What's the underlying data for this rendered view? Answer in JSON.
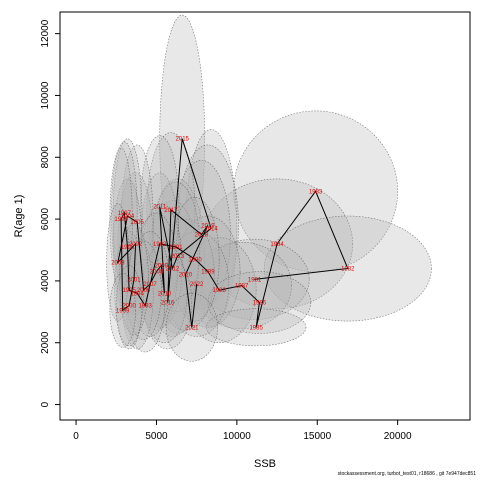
{
  "chart_data": {
    "type": "scatter",
    "title": "",
    "xlabel": "SSB",
    "ylabel": "R(age 1)",
    "xlim": [
      -1000,
      24500
    ],
    "ylim": [
      -500,
      12700
    ],
    "x_ticks": [
      0,
      5000,
      10000,
      15000,
      20000
    ],
    "y_ticks": [
      0,
      2000,
      4000,
      6000,
      8000,
      10000,
      12000
    ],
    "grid": false,
    "legend": "none",
    "colors": {
      "line": "#000000",
      "label": "#e00000",
      "ellipse_fill": "#b4b4b4",
      "ellipse_stroke": "#555555"
    },
    "points": [
      {
        "label": "1981",
        "x": 11100,
        "y": 4050
      },
      {
        "label": "1982",
        "x": 16900,
        "y": 4400
      },
      {
        "label": "1983",
        "x": 14900,
        "y": 6900
      },
      {
        "label": "1984",
        "x": 12500,
        "y": 5200
      },
      {
        "label": "1985",
        "x": 11200,
        "y": 2500
      },
      {
        "label": "1986",
        "x": 11400,
        "y": 3300
      },
      {
        "label": "1987",
        "x": 10300,
        "y": 3850
      },
      {
        "label": "1988",
        "x": 8900,
        "y": 3700
      },
      {
        "label": "1989",
        "x": 8200,
        "y": 4300
      },
      {
        "label": "1990",
        "x": 7400,
        "y": 4700
      },
      {
        "label": "1991",
        "x": 6200,
        "y": 5100
      },
      {
        "label": "1992",
        "x": 5200,
        "y": 5200
      },
      {
        "label": "1993",
        "x": 4300,
        "y": 3200
      },
      {
        "label": "1994",
        "x": 3800,
        "y": 3600
      },
      {
        "label": "1995",
        "x": 3300,
        "y": 3700
      },
      {
        "label": "1996",
        "x": 3200,
        "y": 5100
      },
      {
        "label": "1997",
        "x": 3000,
        "y": 6200
      },
      {
        "label": "1998",
        "x": 2800,
        "y": 6000
      },
      {
        "label": "1999",
        "x": 2900,
        "y": 3050
      },
      {
        "label": "2000",
        "x": 3300,
        "y": 3200
      },
      {
        "label": "2001",
        "x": 3600,
        "y": 4050
      },
      {
        "label": "2002",
        "x": 3700,
        "y": 5200
      },
      {
        "label": "2003",
        "x": 2600,
        "y": 4600
      },
      {
        "label": "2004",
        "x": 3200,
        "y": 6100
      },
      {
        "label": "2005",
        "x": 3800,
        "y": 5900
      },
      {
        "label": "2006",
        "x": 4200,
        "y": 3700
      },
      {
        "label": "2007",
        "x": 4600,
        "y": 3900
      },
      {
        "label": "2008",
        "x": 5000,
        "y": 4300
      },
      {
        "label": "2009",
        "x": 5300,
        "y": 4500
      },
      {
        "label": "2010",
        "x": 5500,
        "y": 3600
      },
      {
        "label": "2011",
        "x": 5200,
        "y": 6400
      },
      {
        "label": "2012",
        "x": 6000,
        "y": 4400
      },
      {
        "label": "2013",
        "x": 6300,
        "y": 4800
      },
      {
        "label": "2014",
        "x": 8400,
        "y": 5700
      },
      {
        "label": "2015",
        "x": 6600,
        "y": 8600
      },
      {
        "label": "2016",
        "x": 5700,
        "y": 3300
      },
      {
        "label": "2017",
        "x": 5900,
        "y": 6300
      },
      {
        "label": "2018",
        "x": 7800,
        "y": 5500
      },
      {
        "label": "2019",
        "x": 8200,
        "y": 5800
      },
      {
        "label": "2020",
        "x": 6800,
        "y": 4200
      },
      {
        "label": "2021",
        "x": 7200,
        "y": 2500
      },
      {
        "label": "2022",
        "x": 7500,
        "y": 3900
      }
    ],
    "ellipses": [
      {
        "label": "1981",
        "x": 11100,
        "y": 4050,
        "rx": 3400,
        "ry": 1300
      },
      {
        "label": "1982",
        "x": 16900,
        "y": 4400,
        "rx": 5200,
        "ry": 1700
      },
      {
        "label": "1983",
        "x": 14900,
        "y": 6900,
        "rx": 5100,
        "ry": 2600
      },
      {
        "label": "1984",
        "x": 12500,
        "y": 5200,
        "rx": 4700,
        "ry": 2100
      },
      {
        "label": "1985",
        "x": 11200,
        "y": 2500,
        "rx": 3100,
        "ry": 600
      },
      {
        "label": "1986",
        "x": 11400,
        "y": 3300,
        "rx": 3200,
        "ry": 1000
      },
      {
        "label": "1987",
        "x": 10300,
        "y": 3850,
        "rx": 3100,
        "ry": 1400
      },
      {
        "label": "1988",
        "x": 8900,
        "y": 3700,
        "rx": 2300,
        "ry": 1700
      },
      {
        "label": "1989",
        "x": 8200,
        "y": 4300,
        "rx": 2000,
        "ry": 1800
      },
      {
        "label": "1990",
        "x": 7400,
        "y": 4700,
        "rx": 1500,
        "ry": 2000
      },
      {
        "label": "1991",
        "x": 6200,
        "y": 5100,
        "rx": 1500,
        "ry": 2100
      },
      {
        "label": "1992",
        "x": 5200,
        "y": 5200,
        "rx": 1200,
        "ry": 2300
      },
      {
        "label": "1993",
        "x": 4300,
        "y": 3200,
        "rx": 1200,
        "ry": 1500
      },
      {
        "label": "1994",
        "x": 3800,
        "y": 3600,
        "rx": 1000,
        "ry": 1800
      },
      {
        "label": "1995",
        "x": 3300,
        "y": 3700,
        "rx": 900,
        "ry": 1900
      },
      {
        "label": "1996",
        "x": 3200,
        "y": 5100,
        "rx": 900,
        "ry": 2200
      },
      {
        "label": "1997",
        "x": 3000,
        "y": 6200,
        "rx": 800,
        "ry": 2300
      },
      {
        "label": "1998",
        "x": 2800,
        "y": 6000,
        "rx": 700,
        "ry": 2300
      },
      {
        "label": "1999",
        "x": 2900,
        "y": 3050,
        "rx": 800,
        "ry": 1200
      },
      {
        "label": "2000",
        "x": 3300,
        "y": 3200,
        "rx": 800,
        "ry": 1300
      },
      {
        "label": "2001",
        "x": 3600,
        "y": 4050,
        "rx": 900,
        "ry": 1800
      },
      {
        "label": "2002",
        "x": 3700,
        "y": 5200,
        "rx": 1100,
        "ry": 2300
      },
      {
        "label": "2003",
        "x": 2600,
        "y": 4600,
        "rx": 700,
        "ry": 1900
      },
      {
        "label": "2004",
        "x": 3200,
        "y": 6100,
        "rx": 900,
        "ry": 2500
      },
      {
        "label": "2005",
        "x": 3800,
        "y": 5900,
        "rx": 1000,
        "ry": 2500
      },
      {
        "label": "2006",
        "x": 4200,
        "y": 3700,
        "rx": 1100,
        "ry": 1600
      },
      {
        "label": "2007",
        "x": 4600,
        "y": 3900,
        "rx": 1200,
        "ry": 1700
      },
      {
        "label": "2008",
        "x": 5000,
        "y": 4300,
        "rx": 1300,
        "ry": 1900
      },
      {
        "label": "2009",
        "x": 5300,
        "y": 4500,
        "rx": 1300,
        "ry": 2000
      },
      {
        "label": "2010",
        "x": 5500,
        "y": 3600,
        "rx": 1400,
        "ry": 1600
      },
      {
        "label": "2011",
        "x": 5200,
        "y": 6400,
        "rx": 1200,
        "ry": 2300
      },
      {
        "label": "2012",
        "x": 6000,
        "y": 4400,
        "rx": 1600,
        "ry": 2200
      },
      {
        "label": "2013",
        "x": 6300,
        "y": 4800,
        "rx": 1700,
        "ry": 2500
      },
      {
        "label": "2014",
        "x": 8400,
        "y": 5700,
        "rx": 1600,
        "ry": 3200
      },
      {
        "label": "2015",
        "x": 6600,
        "y": 8600,
        "rx": 1400,
        "ry": 4000
      },
      {
        "label": "2016",
        "x": 5700,
        "y": 3300,
        "rx": 1500,
        "ry": 1500
      },
      {
        "label": "2017",
        "x": 5900,
        "y": 6300,
        "rx": 1500,
        "ry": 2500
      },
      {
        "label": "2018",
        "x": 7800,
        "y": 5500,
        "rx": 1800,
        "ry": 2400
      },
      {
        "label": "2019",
        "x": 8200,
        "y": 5800,
        "rx": 1900,
        "ry": 2600
      },
      {
        "label": "2020",
        "x": 6800,
        "y": 4200,
        "rx": 1800,
        "ry": 1800
      },
      {
        "label": "2021",
        "x": 7200,
        "y": 2500,
        "rx": 1600,
        "ry": 1100
      },
      {
        "label": "2022",
        "x": 7500,
        "y": 3900,
        "rx": 2000,
        "ry": 1700
      }
    ]
  },
  "footer": "stockassessment.org, turbot_test01, r18686 , git 7e947dec851"
}
